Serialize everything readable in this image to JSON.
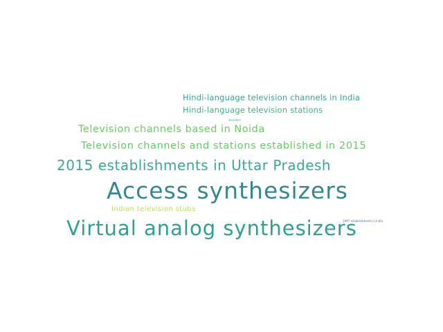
{
  "words": [
    {
      "text": "Access synthesizers",
      "color": "#35878e"
    },
    {
      "text": "Virtual analog synthesizers",
      "color": "#2f9f92"
    },
    {
      "text": "2015 establishments in Uttar Pradesh",
      "color": "#3aa79b"
    },
    {
      "text": "Television channels and stations established in 2015",
      "color": "#67c96a"
    },
    {
      "text": "Television channels based in Noida",
      "color": "#6cc963"
    },
    {
      "text": "Hindi-language television channels in India",
      "color": "#31a39a"
    },
    {
      "text": "Hindi-language television stations",
      "color": "#42ac88"
    },
    {
      "text": "Indian television stubs",
      "color": "#b7df5b"
    },
    {
      "text": "Vocoders",
      "color": "#4aa3a0"
    },
    {
      "text": "1997 establishments in India",
      "color": "#4a6f96"
    }
  ]
}
